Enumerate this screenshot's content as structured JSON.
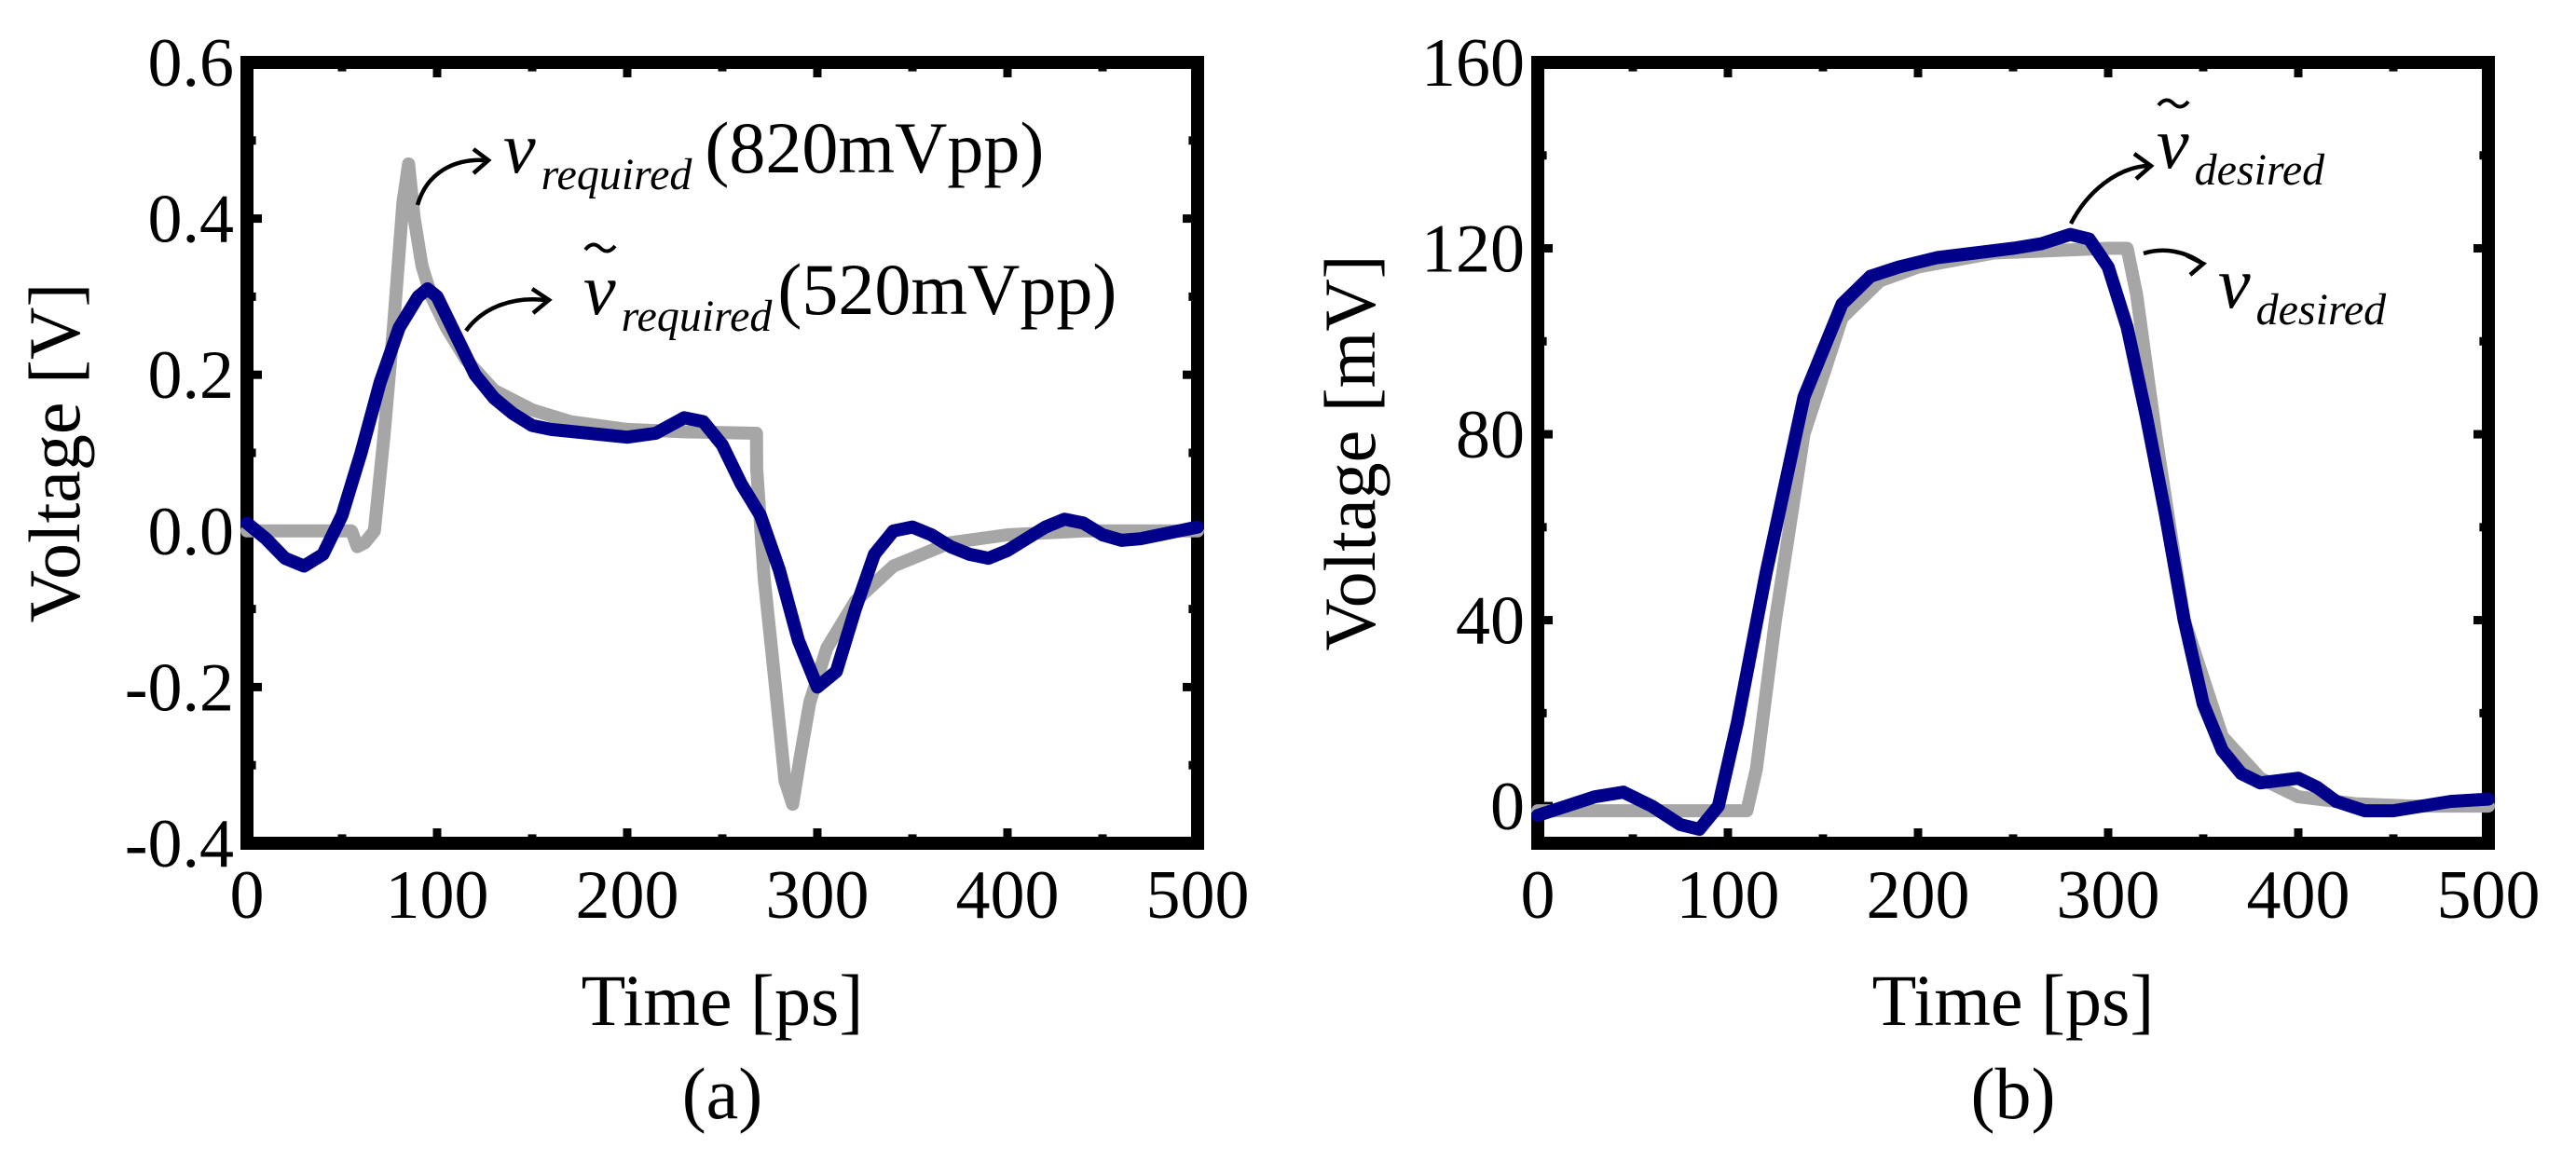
{
  "chart_data": [
    {
      "id": "a",
      "type": "line",
      "caption": "(a)",
      "xlabel": "Time [ps]",
      "ylabel": "Voltage [V]",
      "xlim": [
        0,
        500
      ],
      "ylim": [
        -0.4,
        0.6
      ],
      "xticks": [
        0,
        100,
        200,
        300,
        400,
        500
      ],
      "xtick_labels": [
        "0",
        "100",
        "200",
        "300",
        "400",
        "500"
      ],
      "yticks": [
        -0.4,
        -0.2,
        0.0,
        0.2,
        0.4,
        0.6
      ],
      "ytick_labels": [
        "-0.4",
        "-0.2",
        "0.0",
        "0.2",
        "0.4",
        "0.6"
      ],
      "series": [
        {
          "name": "v_required",
          "label_main": "v",
          "label_sub": "required",
          "label_note": "(820mVpp)",
          "tilde": false,
          "color": "#a6a6a6",
          "x": [
            0,
            40,
            55,
            58,
            62,
            67,
            72,
            77,
            82,
            85,
            88,
            92,
            97,
            105,
            115,
            130,
            150,
            170,
            200,
            230,
            268,
            268.1,
            272,
            278,
            283,
            287,
            291,
            296,
            305,
            320,
            340,
            370,
            400,
            440,
            500
          ],
          "y": [
            0,
            0,
            0,
            -0.02,
            -0.015,
            0.0,
            0.12,
            0.26,
            0.42,
            0.47,
            0.4,
            0.34,
            0.3,
            0.26,
            0.22,
            0.18,
            0.155,
            0.14,
            0.13,
            0.127,
            0.125,
            0.08,
            -0.06,
            -0.2,
            -0.32,
            -0.35,
            -0.29,
            -0.22,
            -0.15,
            -0.09,
            -0.045,
            -0.015,
            -0.005,
            0,
            0
          ]
        },
        {
          "name": "v_tilde_required",
          "label_main": "v",
          "label_sub": "required",
          "label_note": "(520mVpp)",
          "tilde": true,
          "color": "#00008b",
          "x": [
            0,
            10,
            20,
            30,
            40,
            50,
            60,
            70,
            80,
            90,
            95,
            100,
            110,
            120,
            130,
            140,
            150,
            160,
            180,
            200,
            215,
            230,
            240,
            250,
            260,
            270,
            280,
            290,
            300,
            310,
            320,
            330,
            340,
            350,
            360,
            370,
            380,
            390,
            400,
            410,
            420,
            430,
            440,
            450,
            460,
            470,
            480,
            490,
            500
          ],
          "y": [
            0.01,
            -0.01,
            -0.035,
            -0.045,
            -0.03,
            0.02,
            0.1,
            0.19,
            0.26,
            0.3,
            0.31,
            0.3,
            0.25,
            0.2,
            0.17,
            0.15,
            0.135,
            0.13,
            0.125,
            0.12,
            0.125,
            0.145,
            0.14,
            0.11,
            0.06,
            0.02,
            -0.05,
            -0.14,
            -0.2,
            -0.18,
            -0.1,
            -0.03,
            0.0,
            0.005,
            -0.005,
            -0.02,
            -0.03,
            -0.035,
            -0.025,
            -0.01,
            0.005,
            0.015,
            0.01,
            -0.005,
            -0.012,
            -0.01,
            -0.005,
            0.0,
            0.005
          ]
        }
      ]
    },
    {
      "id": "b",
      "type": "line",
      "caption": "(b)",
      "xlabel": "Time [ps]",
      "ylabel": "Voltage [mV]",
      "xlim": [
        0,
        500
      ],
      "ylim": [
        -8,
        160
      ],
      "xticks": [
        0,
        100,
        200,
        300,
        400,
        500
      ],
      "xtick_labels": [
        "0",
        "100",
        "200",
        "300",
        "400",
        "500"
      ],
      "yticks": [
        0,
        40,
        80,
        120,
        160
      ],
      "ytick_labels": [
        "0",
        "40",
        "80",
        "120",
        "160"
      ],
      "minor_yticks": [
        20,
        60,
        100,
        140
      ],
      "series": [
        {
          "name": "v_desired",
          "label_main": "v",
          "label_sub": "desired",
          "tilde": false,
          "color": "#a6a6a6",
          "x": [
            0,
            100,
            110,
            115,
            125,
            140,
            160,
            180,
            200,
            240,
            300,
            310,
            315,
            325,
            340,
            360,
            380,
            400,
            430,
            460,
            500
          ],
          "y": [
            -1,
            -1,
            -1,
            8,
            40,
            80,
            105,
            113,
            116,
            119,
            120,
            120,
            110,
            80,
            40,
            15,
            6,
            2,
            0.5,
            0,
            0
          ]
        },
        {
          "name": "v_tilde_desired",
          "label_main": "v",
          "label_sub": "desired",
          "tilde": true,
          "color": "#00008b",
          "x": [
            0,
            15,
            30,
            45,
            60,
            75,
            85,
            95,
            105,
            120,
            140,
            160,
            175,
            190,
            210,
            230,
            250,
            265,
            280,
            290,
            300,
            310,
            320,
            330,
            340,
            350,
            360,
            370,
            380,
            390,
            400,
            410,
            420,
            435,
            450,
            465,
            480,
            500
          ],
          "y": [
            -2,
            0,
            2,
            3,
            0,
            -4,
            -5,
            0,
            18,
            50,
            88,
            108,
            114,
            116,
            118,
            119,
            120,
            121,
            123,
            122,
            116,
            103,
            84,
            63,
            40,
            22,
            12,
            7,
            5,
            5.5,
            6,
            4,
            1,
            -1,
            -1,
            0,
            1,
            1.5
          ]
        }
      ]
    }
  ]
}
